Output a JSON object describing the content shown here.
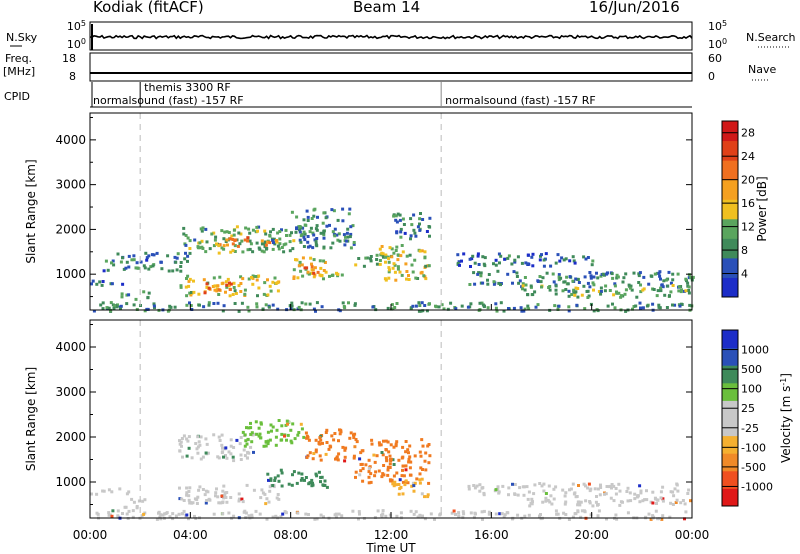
{
  "header": {
    "radar": "Kodiak (fitACF)",
    "beam": "Beam 14",
    "date": "16/Jun/2016"
  },
  "labels": {
    "nsky": "N.Sky",
    "nsky_lo": "10^0",
    "nsky_hi": "10^5",
    "nsearch": "N.Search",
    "freq_line1": "Freq.",
    "freq_line2": "[MHz]",
    "freq_lo": "8",
    "freq_hi": "18",
    "nave": "Nave",
    "nave_lo": "0",
    "nave_hi": "60",
    "cpid": "CPID"
  },
  "cpid_segments": [
    {
      "label": "themis 3300 RF",
      "start_hour": 2.0,
      "row": "upper"
    },
    {
      "label": "normalsound (fast) -157 RF",
      "start_hour": 0.0,
      "row": "lower"
    },
    {
      "label": "normalsound (fast) -157 RF",
      "start_hour": 14.0,
      "row": "lower"
    }
  ],
  "dashed_markers_hours": [
    2.0,
    14.0
  ],
  "colors": {
    "power": [
      "#1c2dc8",
      "#2a50b8",
      "#3f8a5a",
      "#5aa55e",
      "#f0c020",
      "#f5a020",
      "#f07020",
      "#e04018",
      "#d01818"
    ],
    "velocity": [
      "#e01818",
      "#f05020",
      "#f08a28",
      "#f5b030",
      "#c8c8c8",
      "#c8c8c8",
      "#6abf3c",
      "#3e8a5a",
      "#2a50b8",
      "#1c2dc8"
    ]
  },
  "chart_data": [
    {
      "type": "heatmap",
      "panel": "power",
      "ylabel": "Slant Range [km]",
      "xlim_hours": [
        0,
        24
      ],
      "ylim": [
        200,
        4600
      ],
      "yticks": [
        1000,
        2000,
        3000,
        4000
      ],
      "colorbar_label": "Power [dB]",
      "colorbar_ticks": [
        "4",
        "8",
        "12",
        "16",
        "20",
        "24",
        "28"
      ],
      "clim": [
        0,
        30
      ],
      "features": [
        {
          "t0": 0.0,
          "t1": 1.5,
          "r0": 750,
          "r1": 900,
          "value": 6
        },
        {
          "t0": 1.2,
          "t1": 2.3,
          "r0": 450,
          "r1": 650,
          "value": 9
        },
        {
          "t0": 0.5,
          "t1": 4.0,
          "r0": 1100,
          "r1": 1500,
          "value": 6
        },
        {
          "t0": 3.5,
          "t1": 7.5,
          "r0": 550,
          "r1": 1000,
          "value": 14
        },
        {
          "t0": 4.5,
          "t1": 6.0,
          "r0": 600,
          "r1": 850,
          "value": 22
        },
        {
          "t0": 3.5,
          "t1": 8.5,
          "r0": 1500,
          "r1": 2100,
          "value": 10
        },
        {
          "t0": 5.0,
          "t1": 7.5,
          "r0": 1650,
          "r1": 1850,
          "value": 20
        },
        {
          "t0": 8.0,
          "t1": 10.0,
          "r0": 900,
          "r1": 1400,
          "value": 15
        },
        {
          "t0": 8.5,
          "t1": 9.5,
          "r0": 1000,
          "r1": 1200,
          "value": 22
        },
        {
          "t0": 8.0,
          "t1": 10.5,
          "r0": 1600,
          "r1": 2500,
          "value": 7
        },
        {
          "t0": 10.5,
          "t1": 12.0,
          "r0": 1200,
          "r1": 1500,
          "value": 10
        },
        {
          "t0": 11.5,
          "t1": 13.5,
          "r0": 900,
          "r1": 1700,
          "value": 14
        },
        {
          "t0": 12.0,
          "t1": 13.5,
          "r0": 1800,
          "r1": 2400,
          "value": 6
        },
        {
          "t0": 15.0,
          "t1": 24.0,
          "r0": 750,
          "r1": 1100,
          "value": 7
        },
        {
          "t0": 14.5,
          "t1": 20.0,
          "r0": 1200,
          "r1": 1500,
          "value": 5
        },
        {
          "t0": 17.0,
          "t1": 24.0,
          "r0": 500,
          "r1": 800,
          "value": 10
        },
        {
          "t0": 0.0,
          "t1": 24.0,
          "r0": 200,
          "r1": 400,
          "value": 8
        }
      ]
    },
    {
      "type": "heatmap",
      "panel": "velocity",
      "ylabel": "Slant Range [km]",
      "xlabel": "Time UT",
      "xlim_hours": [
        0,
        24
      ],
      "ylim": [
        200,
        4600
      ],
      "yticks": [
        1000,
        2000,
        3000,
        4000
      ],
      "xticks": [
        "00:00",
        "04:00",
        "08:00",
        "12:00",
        "16:00",
        "20:00",
        "00:00"
      ],
      "colorbar_label": "Velocity [m s^-1]",
      "colorbar_ticks": [
        "1000",
        "500",
        "100",
        "25",
        "-25",
        "-100",
        "-500",
        "-1000"
      ],
      "features": [
        {
          "t0": 0.0,
          "t1": 1.5,
          "r0": 750,
          "r1": 900,
          "value": "gray"
        },
        {
          "t0": 1.2,
          "t1": 2.3,
          "r0": 450,
          "r1": 650,
          "value": "gray"
        },
        {
          "t0": 3.5,
          "t1": 7.5,
          "r0": 550,
          "r1": 1000,
          "value": "gray"
        },
        {
          "t0": 3.5,
          "t1": 6.5,
          "r0": 1500,
          "r1": 2100,
          "value": "gray"
        },
        {
          "t0": 6.0,
          "t1": 8.5,
          "r0": 1800,
          "r1": 2400,
          "value": "lightgreen"
        },
        {
          "t0": 7.0,
          "t1": 9.5,
          "r0": 900,
          "r1": 1300,
          "value": "darkgreen"
        },
        {
          "t0": 8.5,
          "t1": 10.5,
          "r0": 1500,
          "r1": 2200,
          "value": "orange"
        },
        {
          "t0": 10.5,
          "t1": 13.5,
          "r0": 1000,
          "r1": 2000,
          "value": "orange"
        },
        {
          "t0": 12.0,
          "t1": 13.5,
          "r0": 700,
          "r1": 1100,
          "value": "yellow"
        },
        {
          "t0": 15.0,
          "t1": 24.0,
          "r0": 750,
          "r1": 1000,
          "value": "gray"
        },
        {
          "t0": 17.0,
          "t1": 24.0,
          "r0": 500,
          "r1": 750,
          "value": "gray"
        },
        {
          "t0": 0.0,
          "t1": 24.0,
          "r0": 200,
          "r1": 400,
          "value": "gray"
        }
      ]
    }
  ]
}
